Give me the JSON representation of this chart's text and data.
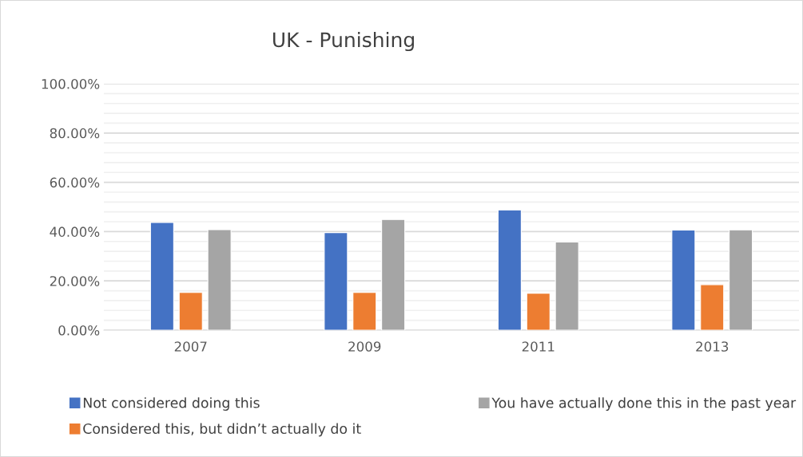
{
  "chart_data": {
    "type": "bar",
    "title": "UK - Punishing",
    "categories": [
      "2007",
      "2009",
      "2011",
      "2013"
    ],
    "series": [
      {
        "name": "Not considered doing this",
        "color": "#4472c4",
        "values": [
          43.7,
          39.6,
          48.8,
          40.6
        ]
      },
      {
        "name": "Considered this, but didn’t actually do it",
        "color": "#ed7d31",
        "values": [
          15.3,
          15.3,
          15.0,
          18.5
        ]
      },
      {
        "name": "You have actually done this in the past year",
        "color": "#a5a5a5",
        "values": [
          40.8,
          44.9,
          35.8,
          40.7
        ]
      }
    ],
    "ylim": [
      0,
      100
    ],
    "yticks": [
      {
        "value": 0,
        "label": "0.00%"
      },
      {
        "value": 4,
        "label": null
      },
      {
        "value": 8,
        "label": null
      },
      {
        "value": 12,
        "label": null
      },
      {
        "value": 16,
        "label": null
      },
      {
        "value": 20,
        "label": "20.00%"
      },
      {
        "value": 24,
        "label": null
      },
      {
        "value": 28,
        "label": null
      },
      {
        "value": 32,
        "label": null
      },
      {
        "value": 36,
        "label": null
      },
      {
        "value": 40,
        "label": "40.00%"
      },
      {
        "value": 44,
        "label": null
      },
      {
        "value": 48,
        "label": null
      },
      {
        "value": 52,
        "label": null
      },
      {
        "value": 56,
        "label": null
      },
      {
        "value": 60,
        "label": "60.00%"
      },
      {
        "value": 64,
        "label": null
      },
      {
        "value": 68,
        "label": null
      },
      {
        "value": 72,
        "label": null
      },
      {
        "value": 76,
        "label": null
      },
      {
        "value": 80,
        "label": "80.00%"
      },
      {
        "value": 84,
        "label": null
      },
      {
        "value": 88,
        "label": null
      },
      {
        "value": 92,
        "label": null
      },
      {
        "value": 96,
        "label": null
      },
      {
        "value": 100,
        "label": "100.00%"
      }
    ],
    "grid": "y",
    "legend": "bottom"
  }
}
